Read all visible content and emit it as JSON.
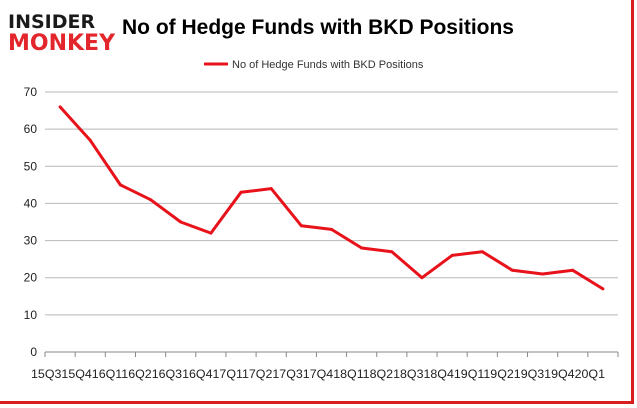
{
  "logo": {
    "line1": "INSIDER",
    "line2": "MONKEY",
    "color_dark": "#1a1a1a",
    "color_accent": "#e3262b"
  },
  "colors": {
    "series": "#e8121a",
    "grid": "#b8b8b8",
    "frame": "#d81e1e"
  },
  "chart_data": {
    "type": "line",
    "title": "No of Hedge Funds with BKD Positions",
    "xlabel": "",
    "ylabel": "",
    "legend": "top-center",
    "grid": true,
    "ylim": [
      0,
      70
    ],
    "yticks": [
      0,
      10,
      20,
      30,
      40,
      50,
      60,
      70
    ],
    "categories": [
      "2015Q3",
      "2015Q4",
      "2016Q1",
      "2016Q2",
      "2016Q3",
      "2016Q4",
      "2017Q1",
      "2017Q2",
      "2017Q3",
      "2017Q4",
      "2018Q1",
      "2018Q2",
      "2018Q3",
      "2018Q4",
      "2019Q1",
      "2019Q2",
      "2019Q3",
      "2019Q4",
      "2020Q1"
    ],
    "x_axis_text": "15Q315Q416Q116Q216Q316Q417Q117Q217Q317Q418Q118Q218Q318Q419Q119Q219Q319Q420Q1",
    "series": [
      {
        "name": "No of Hedge Funds with BKD Positions",
        "values": [
          66,
          57,
          45,
          41,
          35,
          32,
          43,
          44,
          34,
          33,
          28,
          27,
          20,
          26,
          27,
          22,
          21,
          22,
          17
        ]
      }
    ]
  }
}
